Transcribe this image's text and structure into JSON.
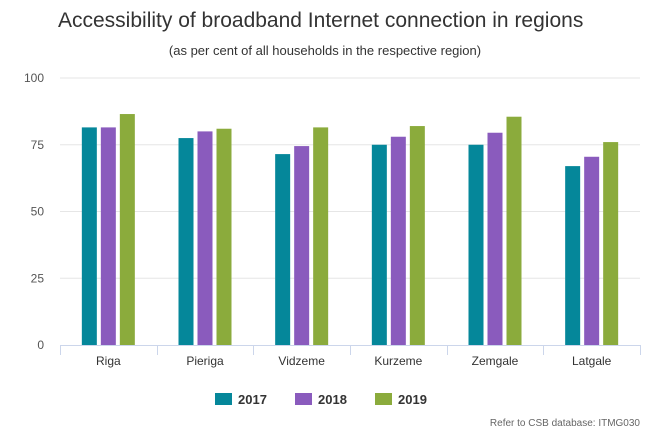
{
  "chart_data": {
    "type": "bar",
    "title": "Accessibility of broadband Internet connection in regions",
    "subtitle": "(as per cent of all households in the respective region)",
    "categories": [
      "Riga",
      "Pieriga",
      "Vidzeme",
      "Kurzeme",
      "Zemgale",
      "Latgale"
    ],
    "series": [
      {
        "name": "2017",
        "color": "#05879a",
        "values": [
          81.5,
          77.5,
          71.5,
          75.0,
          75.0,
          67.0
        ]
      },
      {
        "name": "2018",
        "color": "#8a5bbd",
        "values": [
          81.5,
          80.0,
          74.5,
          78.0,
          79.5,
          70.5
        ]
      },
      {
        "name": "2019",
        "color": "#8bab3c",
        "values": [
          86.5,
          81.0,
          81.5,
          82.0,
          85.5,
          76.0
        ]
      }
    ],
    "ylim": [
      0,
      100
    ],
    "yticks": [
      0,
      25,
      50,
      75,
      100
    ],
    "grid": true,
    "legend_position": "bottom-center",
    "credit": "Refer to CSB database: ITMG030"
  }
}
